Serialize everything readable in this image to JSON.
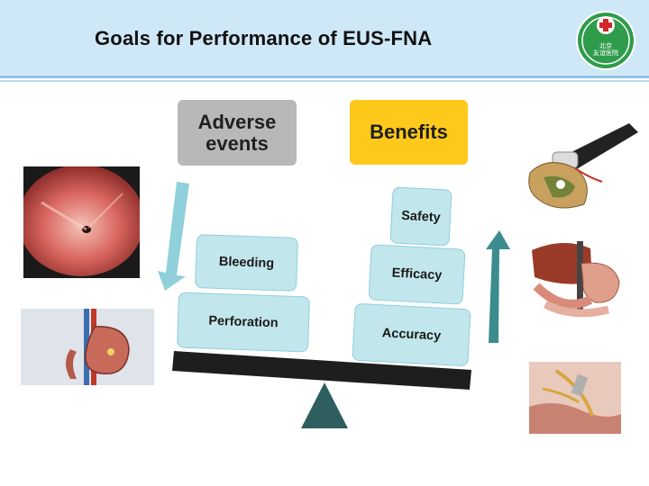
{
  "title": "Goals for Performance of EUS-FNA",
  "logo": {
    "text_line1": "北京",
    "text_line2": "友谊医院"
  },
  "left_column": {
    "header": "Adverse events",
    "items": [
      "Bleeding",
      "Perforation"
    ]
  },
  "right_column": {
    "header": "Benefits",
    "items": [
      "Safety",
      "Efficacy",
      "Accuracy"
    ]
  },
  "colors": {
    "header_band": "#cfe8f8",
    "adverse_box": "#b8b8b8",
    "benefits_box": "#fec91b",
    "block_fill": "#c1e6ec",
    "beam": "#1e1e1e",
    "fulcrum": "#2f5e5f",
    "down_arrow": "#8fd0da",
    "up_arrow": "#3b8c8f",
    "logo_green": "#2e9c4a",
    "logo_red": "#d0262b"
  },
  "icons": [
    "cross-icon",
    "down-arrow-icon",
    "up-arrow-icon",
    "fulcrum-triangle"
  ]
}
